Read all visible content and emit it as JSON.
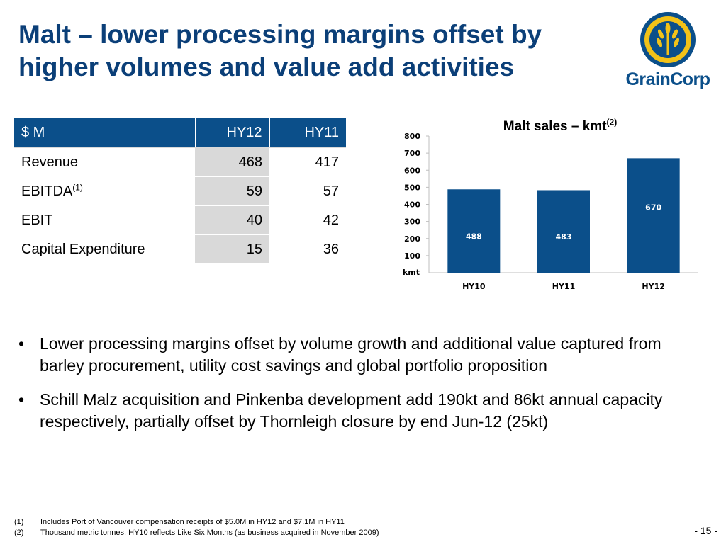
{
  "slide": {
    "title": "Malt – lower processing margins offset by higher volumes and value add activities",
    "page_number": "- 15 -"
  },
  "logo": {
    "text": "GrainCorp"
  },
  "table": {
    "headers": [
      "$ M",
      "HY12",
      "HY11"
    ],
    "rows": [
      {
        "label": "Revenue",
        "sup": "",
        "hy12": "468",
        "hy11": "417"
      },
      {
        "label": "EBITDA",
        "sup": "(1)",
        "hy12": "59",
        "hy11": "57"
      },
      {
        "label": "EBIT",
        "sup": "",
        "hy12": "40",
        "hy11": "42"
      },
      {
        "label": "Capital Expenditure",
        "sup": "",
        "hy12": "15",
        "hy11": "36"
      }
    ]
  },
  "chart_data": {
    "type": "bar",
    "title": "Malt sales – kmt",
    "title_sup": "(2)",
    "categories": [
      "HY10",
      "HY11",
      "HY12"
    ],
    "values": [
      488,
      483,
      670
    ],
    "data_labels": [
      "488",
      "483",
      "670"
    ],
    "ylabel": "kmt",
    "ylim": [
      0,
      800
    ],
    "yticks": [
      "800",
      "700",
      "600",
      "500",
      "400",
      "300",
      "200",
      "100"
    ],
    "ytick_values": [
      800,
      700,
      600,
      500,
      400,
      300,
      200,
      100
    ],
    "grid": false,
    "bar_color": "#0b4f8a"
  },
  "bullets": [
    "Lower processing margins offset by volume growth and additional value captured from barley procurement, utility cost savings and global portfolio proposition",
    "Schill Malz acquisition and Pinkenba development add 190kt and 86kt annual capacity respectively, partially offset by Thornleigh closure by end Jun-12 (25kt)"
  ],
  "bullet_symbol": "•",
  "footnotes": [
    {
      "num": "(1)",
      "text": "Includes Port of Vancouver compensation receipts of $5.0M in HY12 and $7.1M in HY11"
    },
    {
      "num": "(2)",
      "text": "Thousand metric tonnes. HY10 reflects Like Six Months (as business acquired in November 2009)"
    }
  ],
  "colors": {
    "title": "#0b3f78",
    "header_bg": "#0b4f8a",
    "shaded_col": "#d9d9d9",
    "logo_yellow": "#f2c218"
  }
}
